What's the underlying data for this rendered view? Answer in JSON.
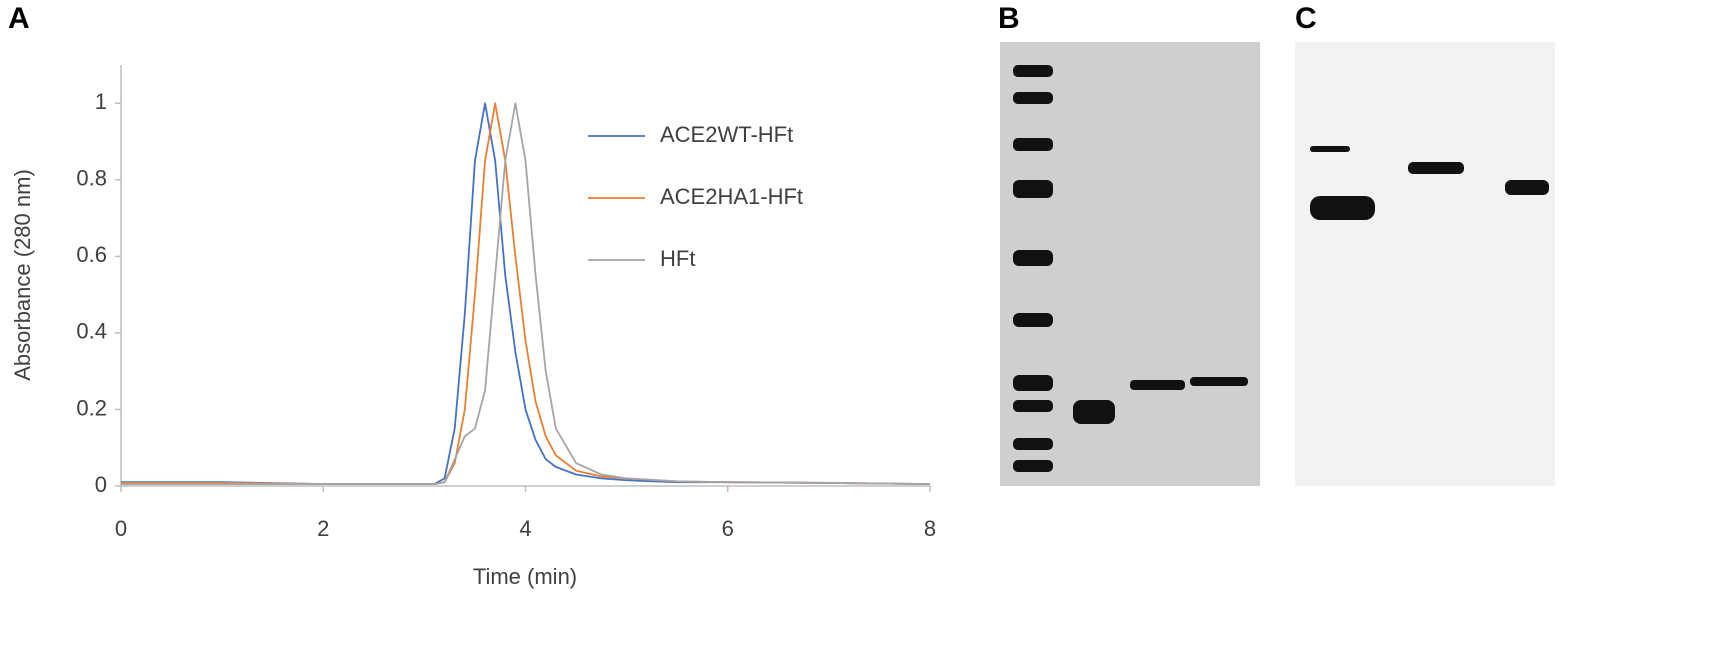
{
  "panel_labels": [
    "A",
    "B",
    "C"
  ],
  "chart_data": {
    "type": "line",
    "x_label": "Time (min)",
    "y_label": "Absorbance (280 nm)",
    "x": [
      0,
      1,
      2,
      3,
      3.1,
      3.2,
      3.3,
      3.4,
      3.5,
      3.6,
      3.7,
      3.8,
      3.9,
      4.0,
      4.1,
      4.2,
      4.3,
      4.5,
      4.75,
      5,
      5.5,
      6,
      7,
      8
    ],
    "series": [
      {
        "name": "ACE2WT-HFt",
        "color": "#4472c4",
        "values": [
          0.01,
          0.01,
          0.005,
          0.005,
          0.005,
          0.02,
          0.15,
          0.45,
          0.85,
          1.0,
          0.85,
          0.55,
          0.35,
          0.2,
          0.12,
          0.07,
          0.05,
          0.03,
          0.02,
          0.015,
          0.01,
          0.01,
          0.008,
          0.005
        ]
      },
      {
        "name": "ACE2HA1-HFt",
        "color": "#ed7d31",
        "values": [
          0.008,
          0.008,
          0.005,
          0.005,
          0.005,
          0.01,
          0.06,
          0.2,
          0.5,
          0.85,
          1.0,
          0.85,
          0.6,
          0.38,
          0.22,
          0.13,
          0.08,
          0.04,
          0.025,
          0.02,
          0.012,
          0.01,
          0.008,
          0.005
        ]
      },
      {
        "name": "HFt",
        "color": "#a5a5a5",
        "values": [
          0.005,
          0.005,
          0.005,
          0.005,
          0.005,
          0.01,
          0.07,
          0.13,
          0.15,
          0.25,
          0.55,
          0.85,
          1.0,
          0.85,
          0.55,
          0.3,
          0.15,
          0.06,
          0.03,
          0.02,
          0.012,
          0.01,
          0.008,
          0.005
        ]
      }
    ],
    "xlim": [
      0,
      8
    ],
    "xticks": [
      0,
      2,
      4,
      6,
      8
    ],
    "ylim": [
      0,
      1.1
    ],
    "yticks": [
      0,
      0.2,
      0.4,
      0.6,
      0.8,
      1
    ],
    "grid": false
  }
}
